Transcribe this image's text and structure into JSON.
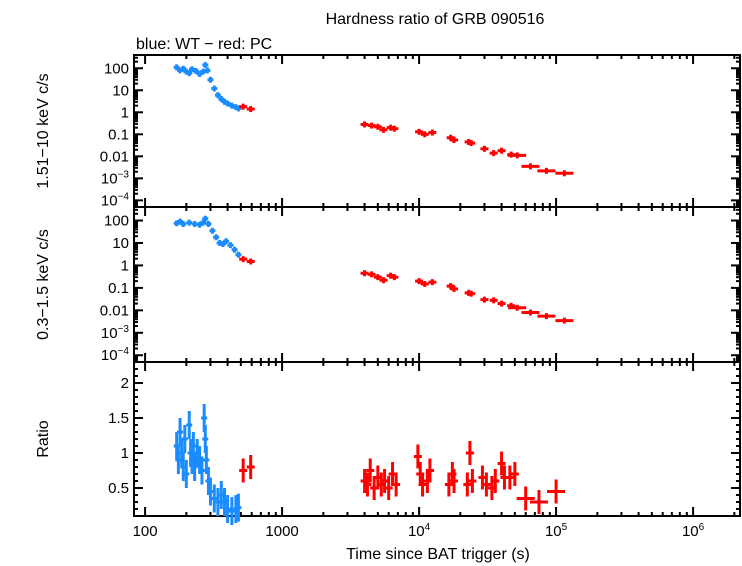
{
  "chart_data": {
    "type": "scatter",
    "title": "Hardness ratio of GRB 090516",
    "subtitle": "blue: WT − red: PC",
    "xlabel": "Time since BAT trigger (s)",
    "xscale": "log",
    "xlim": [
      83,
      2200000
    ],
    "xticks": [
      {
        "value": 100,
        "label": "100"
      },
      {
        "value": 1000,
        "label": "1000"
      },
      {
        "value": 10000,
        "label": "10",
        "sup": "4"
      },
      {
        "value": 100000,
        "label": "10",
        "sup": "5"
      },
      {
        "value": 1000000,
        "label": "10",
        "sup": "6"
      }
    ],
    "colors": {
      "WT": "#1a8cff",
      "PC": "#ff0000"
    },
    "legend": "subtitle text, top-left",
    "panels": [
      {
        "name": "hard",
        "ylabel": "1.51−10 keV c/s",
        "yscale": "log",
        "ylim": [
          5e-05,
          400
        ],
        "yticks": [
          {
            "value": 100,
            "label": "100"
          },
          {
            "value": 10,
            "label": "10"
          },
          {
            "value": 1,
            "label": "1"
          },
          {
            "value": 0.1,
            "label": "0.1"
          },
          {
            "value": 0.01,
            "label": "0.01"
          },
          {
            "value": 0.001,
            "label": "10",
            "sup": "−3"
          },
          {
            "value": 0.0001,
            "label": "10",
            "sup": "−4"
          }
        ],
        "series": [
          {
            "name": "WT",
            "points": [
              [
                170,
                110
              ],
              [
                180,
                80
              ],
              [
                190,
                95
              ],
              [
                200,
                70
              ],
              [
                210,
                60
              ],
              [
                220,
                90
              ],
              [
                235,
                75
              ],
              [
                250,
                55
              ],
              [
                265,
                70
              ],
              [
                275,
                140
              ],
              [
                285,
                80
              ],
              [
                300,
                30
              ],
              [
                320,
                12
              ],
              [
                340,
                6
              ],
              [
                360,
                4
              ],
              [
                380,
                3
              ],
              [
                400,
                2.5
              ],
              [
                430,
                2
              ],
              [
                460,
                1.7
              ],
              [
                480,
                1.5
              ]
            ]
          },
          {
            "name": "PC",
            "points": [
              [
                520,
                1.8
              ],
              [
                590,
                1.4
              ],
              [
                4000,
                0.28
              ],
              [
                4500,
                0.25
              ],
              [
                5000,
                0.22
              ],
              [
                5500,
                0.16
              ],
              [
                6200,
                0.2
              ],
              [
                6600,
                0.18
              ],
              [
                10000,
                0.13
              ],
              [
                11000,
                0.1
              ],
              [
                12500,
                0.12
              ],
              [
                17000,
                0.07
              ],
              [
                18000,
                0.055
              ],
              [
                23000,
                0.045
              ],
              [
                24000,
                0.04
              ],
              [
                30000,
                0.022
              ],
              [
                35000,
                0.014
              ],
              [
                40000,
                0.018
              ],
              [
                47000,
                0.012
              ],
              [
                52000,
                0.011
              ],
              [
                65000,
                0.0035
              ],
              [
                85000,
                0.0022
              ],
              [
                115000,
                0.0017
              ]
            ]
          }
        ]
      },
      {
        "name": "soft",
        "ylabel": "0.3−1.5 keV c/s",
        "yscale": "log",
        "ylim": [
          5e-05,
          400
        ],
        "yticks": [
          {
            "value": 100,
            "label": "100"
          },
          {
            "value": 10,
            "label": "10"
          },
          {
            "value": 1,
            "label": "1"
          },
          {
            "value": 0.1,
            "label": "0.1"
          },
          {
            "value": 0.01,
            "label": "0.01"
          },
          {
            "value": 0.001,
            "label": "10",
            "sup": "−3"
          },
          {
            "value": 0.0001,
            "label": "10",
            "sup": "−4"
          }
        ],
        "series": [
          {
            "name": "WT",
            "points": [
              [
                170,
                75
              ],
              [
                180,
                90
              ],
              [
                190,
                70
              ],
              [
                210,
                80
              ],
              [
                230,
                70
              ],
              [
                250,
                65
              ],
              [
                265,
                80
              ],
              [
                275,
                120
              ],
              [
                290,
                70
              ],
              [
                310,
                35
              ],
              [
                330,
                18
              ],
              [
                350,
                10
              ],
              [
                370,
                9
              ],
              [
                390,
                12
              ],
              [
                420,
                8
              ],
              [
                450,
                5
              ],
              [
                480,
                3
              ]
            ]
          },
          {
            "name": "PC",
            "points": [
              [
                520,
                1.9
              ],
              [
                590,
                1.5
              ],
              [
                4000,
                0.45
              ],
              [
                4500,
                0.4
              ],
              [
                5000,
                0.3
              ],
              [
                5500,
                0.22
              ],
              [
                6200,
                0.35
              ],
              [
                6600,
                0.3
              ],
              [
                10000,
                0.2
              ],
              [
                11000,
                0.15
              ],
              [
                12500,
                0.18
              ],
              [
                17000,
                0.12
              ],
              [
                18000,
                0.09
              ],
              [
                23000,
                0.06
              ],
              [
                24000,
                0.055
              ],
              [
                30000,
                0.03
              ],
              [
                35000,
                0.028
              ],
              [
                40000,
                0.02
              ],
              [
                47000,
                0.016
              ],
              [
                52000,
                0.013
              ],
              [
                65000,
                0.008
              ],
              [
                85000,
                0.0055
              ],
              [
                115000,
                0.0035
              ]
            ]
          }
        ]
      },
      {
        "name": "ratio",
        "ylabel": "Ratio",
        "yscale": "linear",
        "ylim": [
          0.1,
          2.3
        ],
        "yticks": [
          {
            "value": 2,
            "label": "2"
          },
          {
            "value": 1.5,
            "label": "1.5"
          },
          {
            "value": 1,
            "label": "1"
          },
          {
            "value": 0.5,
            "label": "0.5"
          }
        ],
        "series": [
          {
            "name": "WT",
            "points": [
              [
                170,
                1.1
              ],
              [
                175,
                0.9
              ],
              [
                180,
                1.3
              ],
              [
                185,
                1.0
              ],
              [
                190,
                0.8
              ],
              [
                195,
                1.2
              ],
              [
                200,
                0.7
              ],
              [
                210,
                1.4
              ],
              [
                215,
                1.0
              ],
              [
                220,
                0.9
              ],
              [
                225,
                1.1
              ],
              [
                230,
                0.8
              ],
              [
                240,
                1.0
              ],
              [
                250,
                0.9
              ],
              [
                260,
                0.75
              ],
              [
                270,
                1.5
              ],
              [
                275,
                1.2
              ],
              [
                280,
                0.9
              ],
              [
                290,
                0.6
              ],
              [
                300,
                0.45
              ],
              [
                320,
                0.35
              ],
              [
                340,
                0.3
              ],
              [
                360,
                0.4
              ],
              [
                380,
                0.3
              ],
              [
                400,
                0.2
              ],
              [
                430,
                0.17
              ],
              [
                460,
                0.2
              ],
              [
                480,
                0.22
              ]
            ]
          },
          {
            "name": "PC",
            "points": [
              [
                520,
                0.75
              ],
              [
                590,
                0.8
              ],
              [
                4000,
                0.6
              ],
              [
                4200,
                0.55
              ],
              [
                4400,
                0.75
              ],
              [
                4700,
                0.5
              ],
              [
                5000,
                0.65
              ],
              [
                5300,
                0.55
              ],
              [
                5600,
                0.6
              ],
              [
                6000,
                0.5
              ],
              [
                6400,
                0.7
              ],
              [
                6800,
                0.55
              ],
              [
                9800,
                0.95
              ],
              [
                10200,
                0.7
              ],
              [
                10600,
                0.55
              ],
              [
                11500,
                0.6
              ],
              [
                12000,
                0.75
              ],
              [
                16500,
                0.55
              ],
              [
                17500,
                0.7
              ],
              [
                18000,
                0.6
              ],
              [
                22500,
                0.55
              ],
              [
                23500,
                1.0
              ],
              [
                24500,
                0.6
              ],
              [
                29000,
                0.65
              ],
              [
                31000,
                0.55
              ],
              [
                34000,
                0.5
              ],
              [
                36000,
                0.6
              ],
              [
                40000,
                0.85
              ],
              [
                42000,
                0.65
              ],
              [
                46000,
                0.65
              ],
              [
                50000,
                0.7
              ],
              [
                60000,
                0.35
              ],
              [
                75000,
                0.3
              ],
              [
                100000,
                0.45
              ]
            ]
          }
        ]
      }
    ]
  }
}
